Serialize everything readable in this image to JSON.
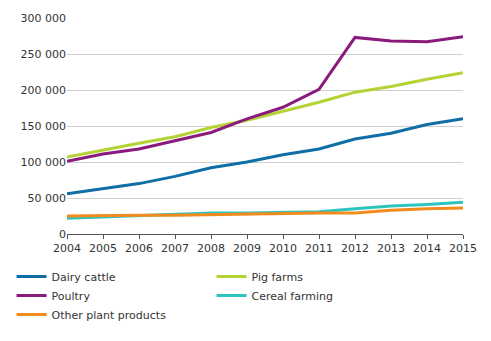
{
  "chart_data": {
    "type": "line",
    "x": [
      2004,
      2005,
      2006,
      2007,
      2008,
      2009,
      2010,
      2011,
      2012,
      2013,
      2014,
      2015
    ],
    "series": [
      {
        "name": "Dairy cattle",
        "color": "#0f6ea5",
        "values": [
          56000,
          63000,
          70000,
          80000,
          92000,
          100000,
          110000,
          118000,
          132000,
          140000,
          152000,
          160000
        ]
      },
      {
        "name": "Pig farms",
        "color": "#b3d335",
        "values": [
          107000,
          117000,
          126000,
          135000,
          148000,
          158000,
          170000,
          183000,
          197000,
          205000,
          215000,
          224000
        ]
      },
      {
        "name": "Poultry",
        "color": "#8b1a7d",
        "values": [
          101000,
          111000,
          118000,
          130000,
          141000,
          160000,
          176000,
          201000,
          273000,
          268000,
          267000,
          274000
        ]
      },
      {
        "name": "Cereal farming",
        "color": "#2ec4be",
        "values": [
          22000,
          24000,
          25000,
          27000,
          29000,
          29000,
          30000,
          31000,
          35000,
          39000,
          41000,
          44000
        ]
      },
      {
        "name": "Other plant products",
        "color": "#f28b1d",
        "values": [
          25000,
          26000,
          26000,
          26000,
          27000,
          28000,
          28000,
          29000,
          29000,
          33000,
          35000,
          36000
        ]
      }
    ],
    "xlim": [
      2004,
      2015
    ],
    "xticks": [
      2004,
      2005,
      2006,
      2007,
      2008,
      2009,
      2010,
      2011,
      2012,
      2013,
      2014,
      2015
    ],
    "ylim": [
      0,
      300000
    ],
    "yticks": [
      0,
      {
        "value": 50000,
        "label": "50 000"
      },
      {
        "value": 100000,
        "label": "100 000"
      },
      {
        "value": 150000,
        "label": "150 000"
      },
      {
        "value": 200000,
        "label": "200 000"
      },
      {
        "value": 250000,
        "label": "250 000"
      },
      {
        "value": 300000,
        "label": "300 000"
      }
    ],
    "grid": true,
    "legend": "bottom"
  }
}
